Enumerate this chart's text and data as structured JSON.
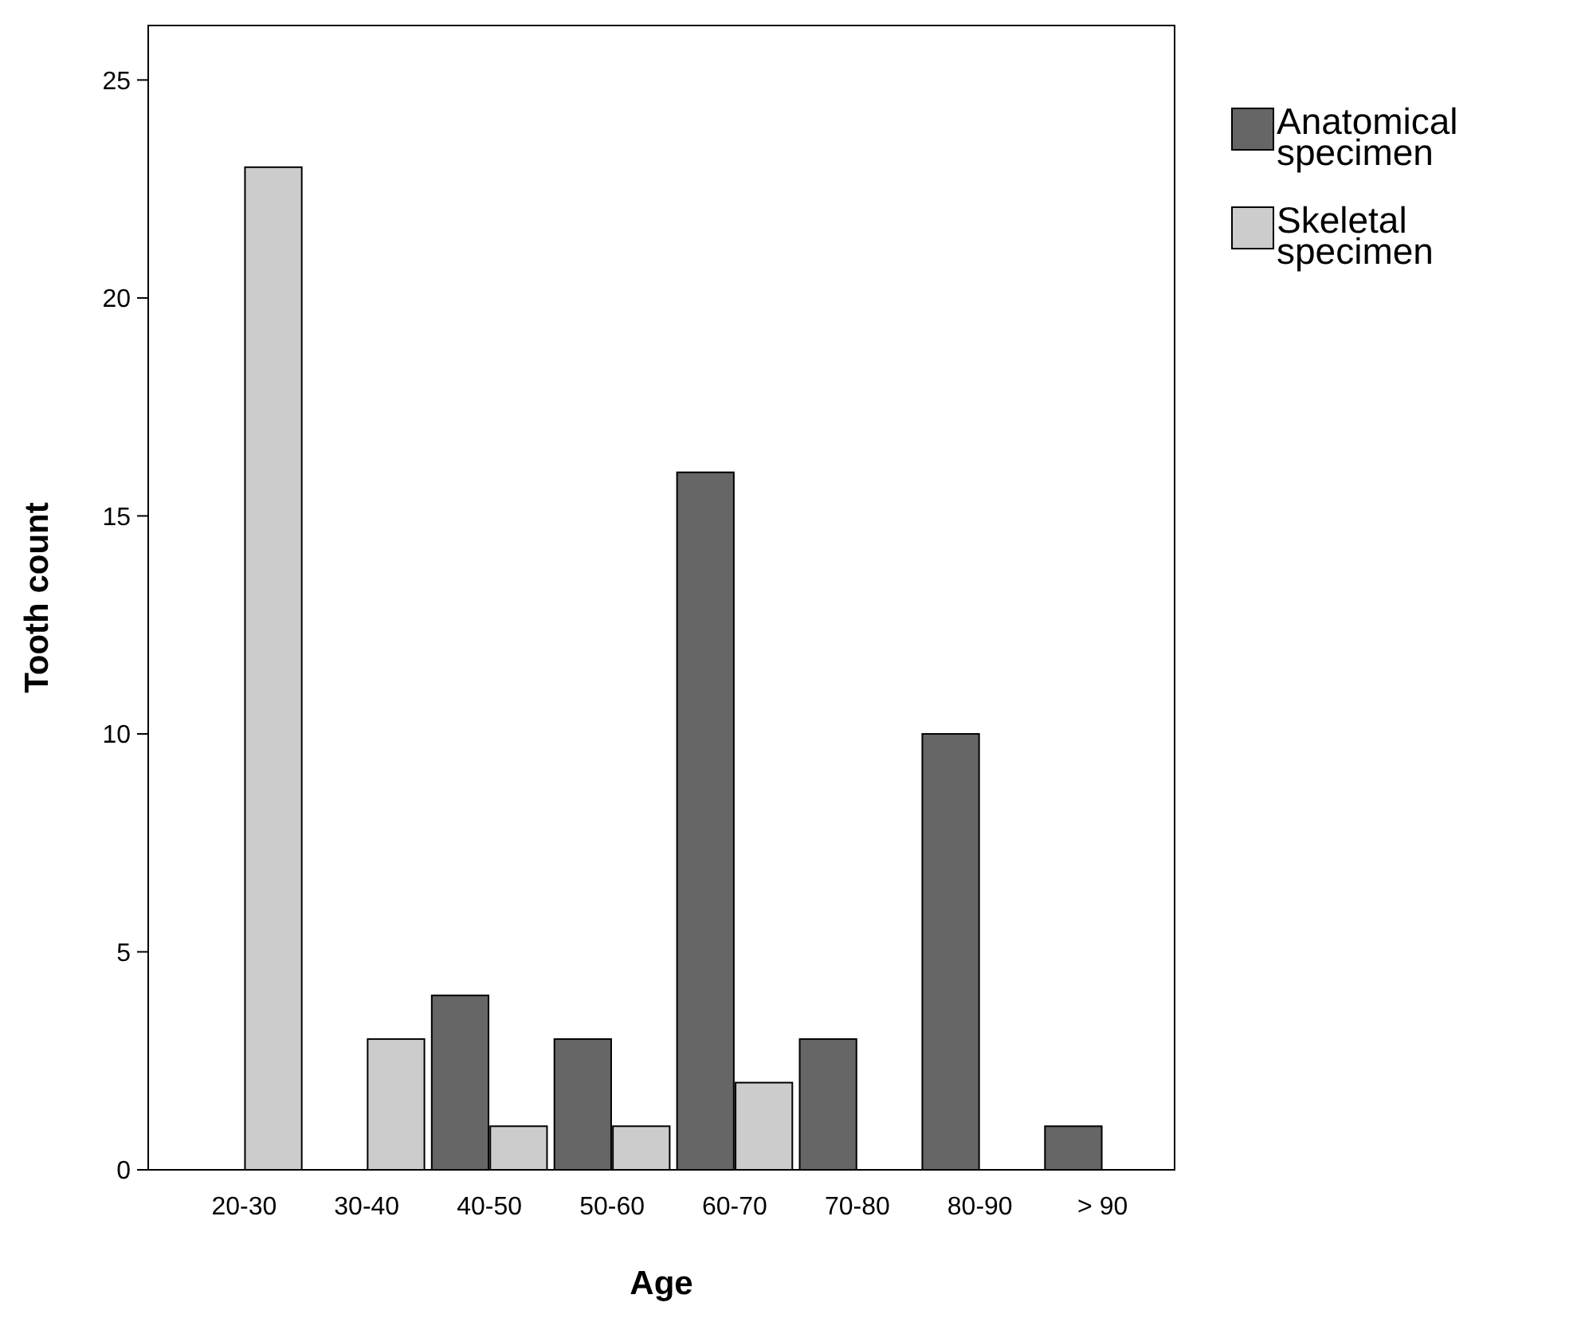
{
  "chart_data": {
    "type": "bar",
    "xlabel": "Age",
    "ylabel": "Tooth count",
    "categories": [
      "20-30",
      "30-40",
      "40-50",
      "50-60",
      "60-70",
      "70-80",
      "80-90",
      "> 90"
    ],
    "series": [
      {
        "name": "Anatomical specimen",
        "color": "#666666",
        "values": [
          0,
          0,
          4,
          3,
          16,
          3,
          10,
          1
        ]
      },
      {
        "name": "Skeletal specimen",
        "color": "#cccccc",
        "values": [
          23,
          3,
          1,
          1,
          2,
          0,
          0,
          0
        ]
      }
    ],
    "ylim": [
      0,
      26.25
    ],
    "yticks": [
      0,
      5,
      10,
      15,
      20,
      25
    ],
    "grid": false,
    "legend": "right"
  }
}
